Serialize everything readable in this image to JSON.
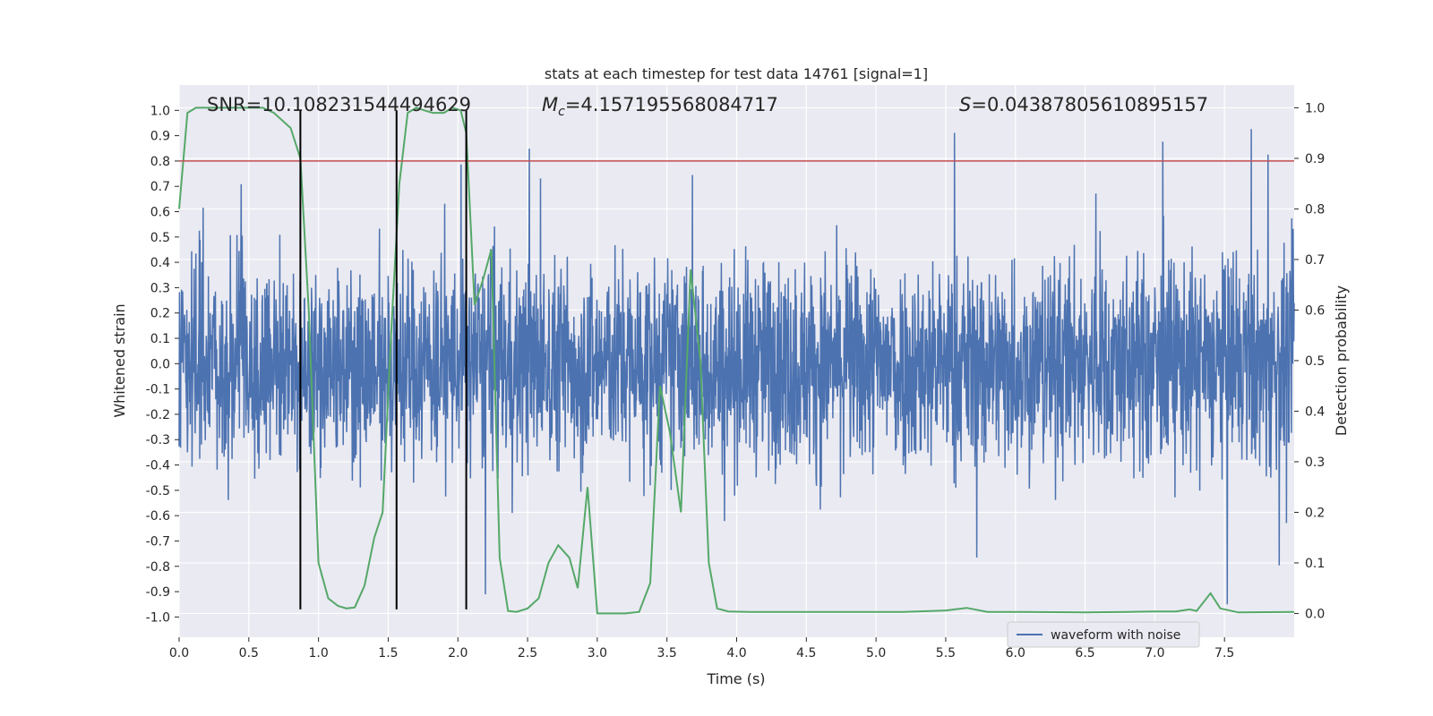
{
  "chart_data": {
    "type": "line",
    "title": "stats at each timestep for test data 14761 [signal=1]",
    "xlabel": "Time (s)",
    "ylabel": "Whitened strain",
    "ylabel_right": "Detection probability",
    "xlim": [
      0.0,
      8.0
    ],
    "ylim": [
      -1.08,
      1.1
    ],
    "ylim_right": [
      -0.047,
      1.045
    ],
    "x_ticks": [
      "0.0",
      "0.5",
      "1.0",
      "1.5",
      "2.0",
      "2.5",
      "3.0",
      "3.5",
      "4.0",
      "4.5",
      "5.0",
      "5.5",
      "6.0",
      "6.5",
      "7.0",
      "7.5"
    ],
    "y_ticks": [
      "1.0",
      "0.9",
      "0.8",
      "0.7",
      "0.6",
      "0.5",
      "0.4",
      "0.3",
      "0.2",
      "0.1",
      "0.0",
      "-0.1",
      "-0.2",
      "-0.3",
      "-0.4",
      "-0.5",
      "-0.6",
      "-0.7",
      "-0.8",
      "-0.9",
      "-1.0"
    ],
    "y_ticks_right": [
      "1.0",
      "0.9",
      "0.8",
      "0.7",
      "0.6",
      "0.5",
      "0.4",
      "0.3",
      "0.2",
      "0.1",
      "0.0"
    ],
    "annotations": {
      "snr": "SNR=10.108231544494629",
      "mc_symbol": "M",
      "mc_sub": "c",
      "mc_value": "=4.157195568084717",
      "s_symbol": "S",
      "s_value": "=0.04387805610895157"
    },
    "threshold_line": {
      "y": 0.8,
      "color": "#c44e52"
    },
    "vertical_lines": [
      0.87,
      1.56,
      2.06
    ],
    "colors": {
      "waveform": "#4c72b0",
      "probability": "#55a868",
      "background": "#eaeaf2",
      "vlines": "#000000"
    },
    "series": [
      {
        "name": "waveform with noise",
        "axis": "left",
        "style": "dense noise band, approx. -0.45 to 0.45 with spikes up to ±0.95"
      },
      {
        "axis": "right",
        "x": [
          0.0,
          0.06,
          0.12,
          0.2,
          0.3,
          0.4,
          0.5,
          0.6,
          0.68,
          0.8,
          0.87,
          0.93,
          1.0,
          1.07,
          1.14,
          1.2,
          1.26,
          1.33,
          1.4,
          1.46,
          1.52,
          1.58,
          1.64,
          1.7,
          1.76,
          1.82,
          1.9,
          1.96,
          2.02,
          2.06,
          2.12,
          2.18,
          2.24,
          2.3,
          2.36,
          2.42,
          2.5,
          2.58,
          2.65,
          2.72,
          2.8,
          2.86,
          2.93,
          3.0,
          3.1,
          3.2,
          3.3,
          3.38,
          3.45,
          3.52,
          3.6,
          3.67,
          3.74,
          3.8,
          3.86,
          3.94,
          4.1,
          4.5,
          5.0,
          5.2,
          5.5,
          5.65,
          5.8,
          6.0,
          6.5,
          6.8,
          7.0,
          7.15,
          7.25,
          7.3,
          7.4,
          7.47,
          7.6,
          8.0
        ],
        "values": [
          0.8,
          0.99,
          1.0,
          1.0,
          1.0,
          1.0,
          1.0,
          1.0,
          0.99,
          0.96,
          0.9,
          0.6,
          0.1,
          0.03,
          0.015,
          0.01,
          0.012,
          0.055,
          0.15,
          0.2,
          0.55,
          0.85,
          0.99,
          1.0,
          0.995,
          0.99,
          0.99,
          1.0,
          0.995,
          0.95,
          0.61,
          0.66,
          0.72,
          0.11,
          0.005,
          0.003,
          0.01,
          0.03,
          0.1,
          0.135,
          0.11,
          0.05,
          0.25,
          0.0,
          0.0,
          0.0,
          0.003,
          0.06,
          0.45,
          0.36,
          0.2,
          0.68,
          0.5,
          0.1,
          0.01,
          0.004,
          0.003,
          0.003,
          0.003,
          0.003,
          0.006,
          0.011,
          0.003,
          0.003,
          0.002,
          0.003,
          0.004,
          0.004,
          0.008,
          0.005,
          0.04,
          0.01,
          0.002,
          0.003
        ]
      }
    ],
    "legend_position": "lower-center-right"
  }
}
